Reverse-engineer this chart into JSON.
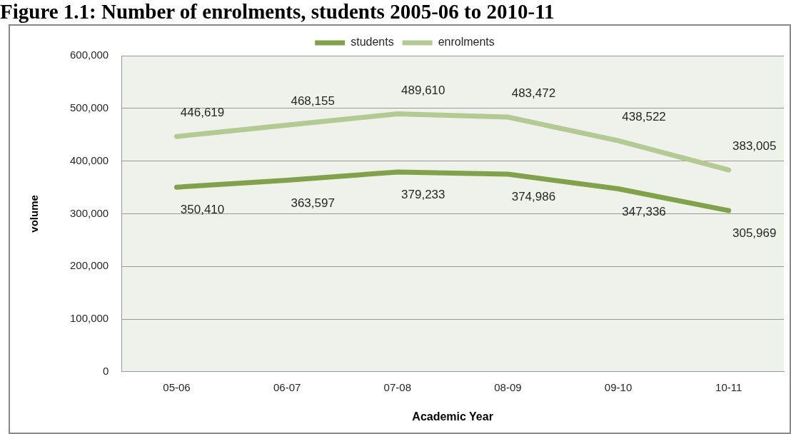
{
  "chart_data": {
    "type": "line",
    "title": "Figure 1.1: Number of enrolments, students 2005-06 to 2010-11",
    "xlabel": "Academic Year",
    "ylabel": "volume",
    "categories": [
      "05-06",
      "06-07",
      "07-08",
      "08-09",
      "09-10",
      "10-11"
    ],
    "series": [
      {
        "name": "students",
        "color": "#82a24a",
        "values": [
          350410,
          363597,
          379233,
          374986,
          347336,
          305969
        ],
        "value_labels": [
          "350,410",
          "363,597",
          "379,233",
          "374,986",
          "347,336",
          "305,969"
        ]
      },
      {
        "name": "enrolments",
        "color": "#b3ca92",
        "values": [
          446619,
          468155,
          489610,
          483472,
          438522,
          383005
        ],
        "value_labels": [
          "446,619",
          "468,155",
          "489,610",
          "483,472",
          "438,522",
          "383,005"
        ]
      }
    ],
    "ylim": [
      0,
      600000
    ],
    "yticks": [
      0,
      {
        "value": 100000,
        "label": "100,000"
      },
      {
        "value": 200000,
        "label": "200,000"
      },
      {
        "value": 300000,
        "label": "300,000"
      },
      {
        "value": 400000,
        "label": "400,000"
      },
      {
        "value": 500000,
        "label": "500,000"
      },
      {
        "value": 600000,
        "label": "600,000"
      }
    ],
    "grid": "y",
    "legend": "top",
    "marker": "none",
    "line_style": "solid"
  }
}
